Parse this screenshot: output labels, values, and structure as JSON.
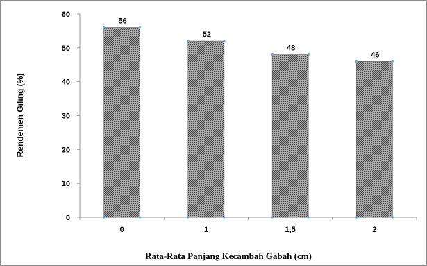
{
  "chart_data": {
    "type": "bar",
    "categories": [
      "0",
      "1",
      "1,5",
      "2"
    ],
    "values": [
      56,
      52,
      48,
      46
    ],
    "data_labels": [
      "56",
      "52",
      "48",
      "46"
    ],
    "title": "",
    "xlabel": "Rata-Rata Panjang Kecambah Gabah (cm)",
    "ylabel": "Rendemen Giling (%)",
    "ylim": [
      0,
      60
    ],
    "yticks": [
      "0",
      "10",
      "20",
      "30",
      "40",
      "50",
      "60"
    ],
    "grid": false,
    "legend": "none",
    "bar_fill": "#555555",
    "bar_pattern": "diagonal-hatch",
    "axis_color": "#9a9a9a",
    "marker_color": "#6aa9d8"
  }
}
